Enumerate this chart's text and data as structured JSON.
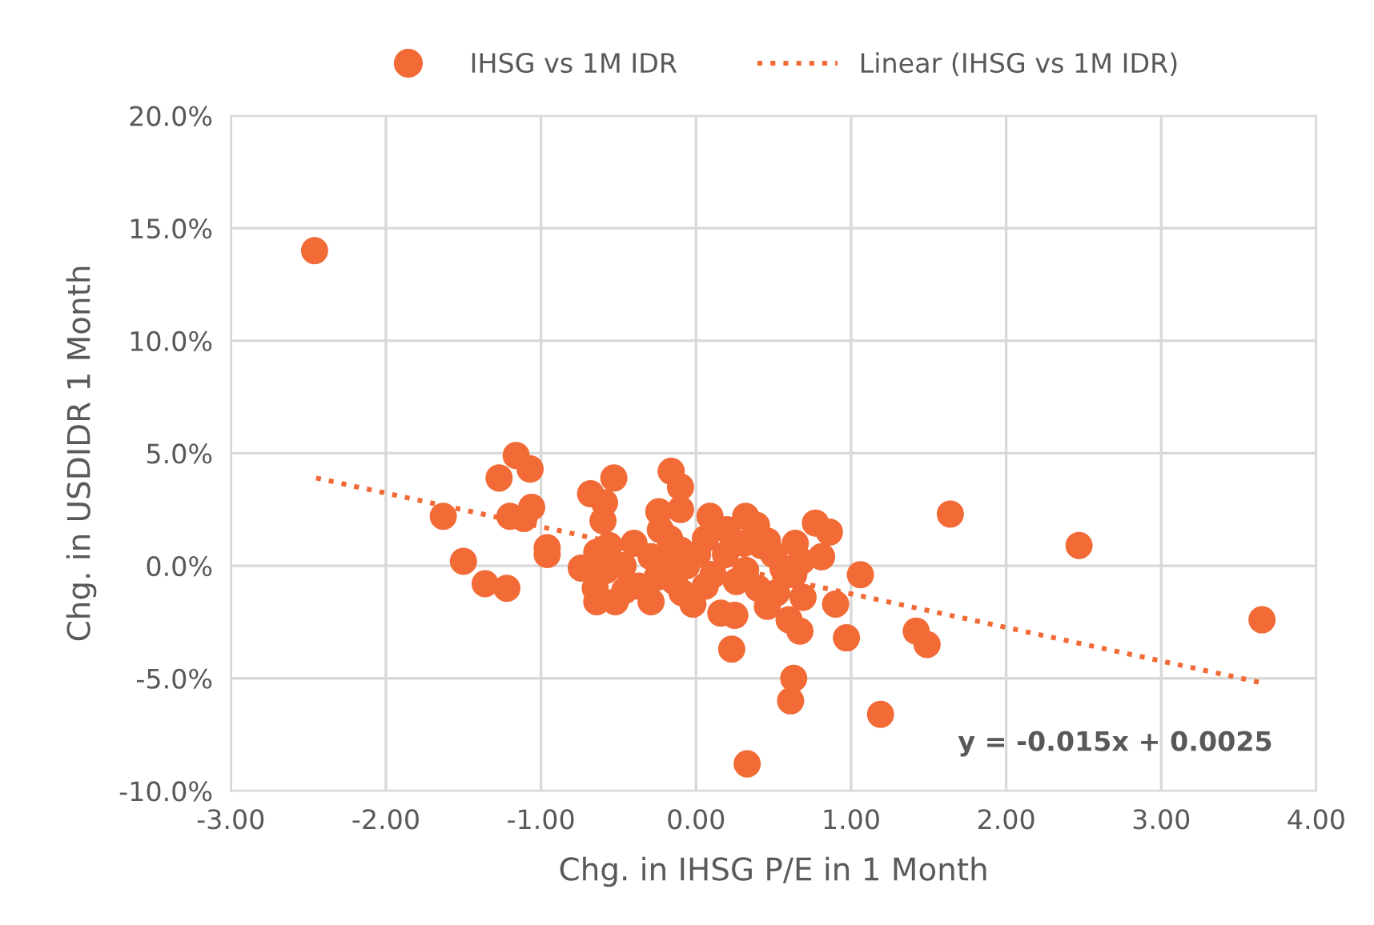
{
  "chart_data": {
    "type": "scatter",
    "xlabel": "Chg. in IHSG P/E in 1 Month",
    "ylabel": "Chg. in USDIDR 1 Month",
    "xlim": [
      -3,
      4
    ],
    "xticks": [
      {
        "value": -3,
        "label": "-3.00"
      },
      {
        "value": -2,
        "label": "-2.00"
      },
      {
        "value": -1,
        "label": "-1.00"
      },
      {
        "value": 0,
        "label": "0.00"
      },
      {
        "value": 1,
        "label": "1.00"
      },
      {
        "value": 2,
        "label": "2.00"
      },
      {
        "value": 3,
        "label": "3.00"
      },
      {
        "value": 4,
        "label": "4.00"
      }
    ],
    "ylim": [
      -10,
      20
    ],
    "yticks": [
      {
        "value": -10,
        "label": "-10.0%"
      },
      {
        "value": -5,
        "label": "-5.0%"
      },
      {
        "value": 0,
        "label": "0.0%"
      },
      {
        "value": 5,
        "label": "5.0%"
      },
      {
        "value": 10,
        "label": "10.0%"
      },
      {
        "value": 15,
        "label": "15.0%"
      },
      {
        "value": 20,
        "label": "20.0%"
      }
    ],
    "grid": true,
    "legend": "top",
    "series": [
      {
        "name": "IHSG vs 1M IDR",
        "marker": "circle",
        "color": "#f26a36",
        "x": [
          -2.46,
          -1.63,
          -1.5,
          -1.36,
          -1.22,
          -1.27,
          -1.16,
          -1.07,
          -1.2,
          -1.11,
          -1.06,
          -0.96,
          -0.96,
          -0.68,
          -0.59,
          -0.6,
          -0.53,
          -0.65,
          -0.64,
          -0.52,
          -0.46,
          -0.4,
          -0.64,
          -0.74,
          -0.58,
          -0.56,
          -0.47,
          -0.29,
          -0.29,
          -0.25,
          -0.24,
          -0.16,
          -0.1,
          -0.1,
          -0.23,
          -0.17,
          -0.1,
          -0.2,
          -0.06,
          -0.14,
          -0.02,
          0.01,
          0.06,
          0.09,
          0.2,
          0.26,
          0.16,
          0.25,
          0.23,
          0.32,
          0.39,
          0.42,
          0.31,
          0.32,
          0.4,
          0.46,
          0.52,
          0.56,
          0.5,
          0.64,
          0.46,
          0.68,
          0.63,
          0.69,
          0.6,
          0.67,
          0.77,
          0.86,
          0.81,
          0.9,
          0.97,
          1.06,
          0.61,
          0.63,
          0.33,
          1.19,
          1.42,
          1.49,
          1.64,
          2.47,
          3.65,
          0.11,
          0.19,
          0.06,
          -0.09,
          -0.37
        ],
        "values": [
          14.0,
          2.2,
          0.2,
          -0.8,
          -1.0,
          3.9,
          4.9,
          4.3,
          2.2,
          2.1,
          2.6,
          0.5,
          0.8,
          3.2,
          2.8,
          2.0,
          3.9,
          -1.0,
          -1.6,
          -1.6,
          -1.1,
          1.0,
          0.6,
          -0.1,
          -0.2,
          0.9,
          0.0,
          0.4,
          -1.6,
          -0.5,
          2.4,
          4.2,
          3.5,
          2.5,
          1.6,
          1.2,
          0.7,
          0.2,
          0.0,
          -0.7,
          -1.7,
          0.5,
          1.2,
          2.2,
          1.6,
          -0.7,
          -2.1,
          -2.2,
          -3.7,
          2.2,
          1.8,
          0.9,
          1.0,
          -0.2,
          -1.0,
          -1.8,
          -1.2,
          -0.1,
          0.5,
          1.0,
          1.1,
          0.2,
          -0.4,
          -1.4,
          -2.4,
          -2.9,
          1.9,
          1.5,
          0.4,
          -1.7,
          -3.2,
          -0.4,
          -6.0,
          -5.0,
          -8.8,
          -6.6,
          -2.9,
          -3.5,
          2.3,
          0.9,
          -2.4,
          -0.4,
          0.5,
          -0.9,
          -1.2,
          -0.9
        ]
      },
      {
        "name": "Linear (IHSG vs 1M IDR)",
        "type": "line",
        "line_style": "dotted",
        "color": "#f26a36",
        "x": [
          -2.45,
          3.65
        ],
        "values": [
          3.9,
          -5.2
        ]
      }
    ],
    "annotations": [
      "y = -0.015x + 0.0025"
    ]
  }
}
